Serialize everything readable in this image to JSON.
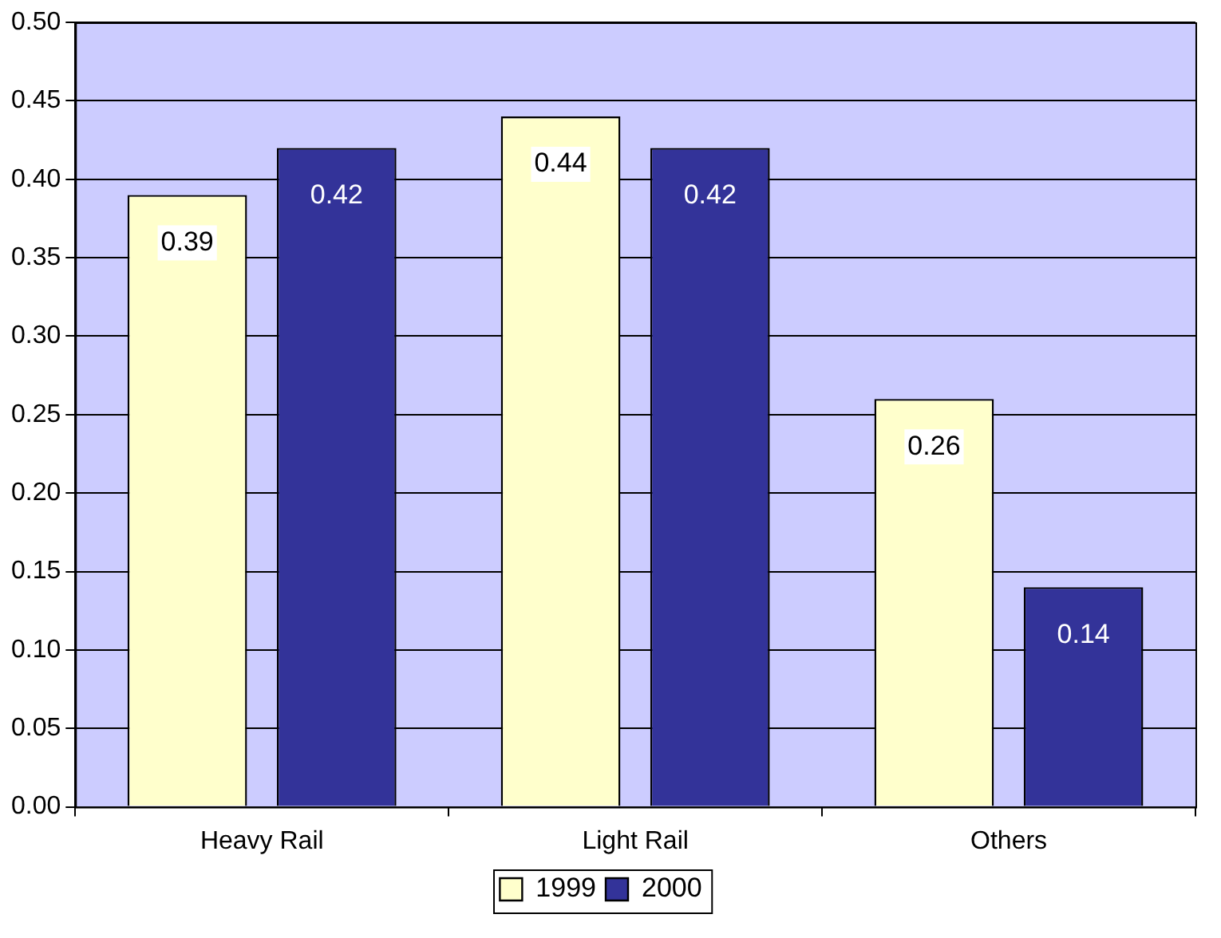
{
  "chart_data": {
    "type": "bar",
    "categories": [
      "Heavy Rail",
      "Light Rail",
      "Others"
    ],
    "series": [
      {
        "name": "1999",
        "color": "#ffffcc",
        "values": [
          0.39,
          0.44,
          0.26
        ]
      },
      {
        "name": "2000",
        "color": "#333399",
        "values": [
          0.42,
          0.42,
          0.14
        ]
      }
    ],
    "ylim": [
      0,
      0.5
    ],
    "yticks": [
      {
        "value": 0,
        "label": "0.00"
      },
      {
        "value": 0.05,
        "label": "0.05"
      },
      {
        "value": 0.1,
        "label": "0.10"
      },
      {
        "value": 0.15,
        "label": "0.15"
      },
      {
        "value": 0.2,
        "label": "0.20"
      },
      {
        "value": 0.25,
        "label": "0.25"
      },
      {
        "value": 0.3,
        "label": "0.30"
      },
      {
        "value": 0.35,
        "label": "0.35"
      },
      {
        "value": 0.4,
        "label": "0.40"
      },
      {
        "value": 0.45,
        "label": "0.45"
      },
      {
        "value": 0.5,
        "label": "0.50"
      }
    ],
    "grid": "y",
    "legend": "bottom",
    "data_labels": true
  }
}
